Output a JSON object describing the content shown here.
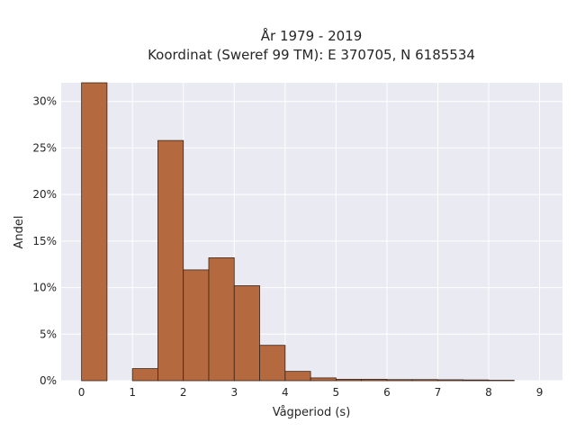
{
  "chart_data": {
    "type": "bar",
    "title_line1": "År 1979 - 2019",
    "title_line2": "Koordinat (Sweref 99 TM): E 370705, N 6185534",
    "xlabel": "Vågperiod (s)",
    "ylabel": "Andel",
    "xlim": [
      -0.4,
      9.45
    ],
    "ylim": [
      0,
      0.32
    ],
    "x_ticks": [
      0,
      1,
      2,
      3,
      4,
      5,
      6,
      7,
      8,
      9
    ],
    "x_tick_labels": [
      "0",
      "1",
      "2",
      "3",
      "4",
      "5",
      "6",
      "7",
      "8",
      "9"
    ],
    "y_ticks": [
      0,
      0.05,
      0.1,
      0.15,
      0.2,
      0.25,
      0.3
    ],
    "y_tick_labels": [
      "0%",
      "5%",
      "10%",
      "15%",
      "20%",
      "25%",
      "30%"
    ],
    "bin_width": 0.5,
    "bins": [
      {
        "start": 0.0,
        "value": 0.32
      },
      {
        "start": 0.5,
        "value": 0.0
      },
      {
        "start": 1.0,
        "value": 0.013
      },
      {
        "start": 1.5,
        "value": 0.258
      },
      {
        "start": 2.0,
        "value": 0.119
      },
      {
        "start": 2.5,
        "value": 0.132
      },
      {
        "start": 3.0,
        "value": 0.102
      },
      {
        "start": 3.5,
        "value": 0.038
      },
      {
        "start": 4.0,
        "value": 0.01
      },
      {
        "start": 4.5,
        "value": 0.003
      },
      {
        "start": 5.0,
        "value": 0.0015
      },
      {
        "start": 5.5,
        "value": 0.0015
      },
      {
        "start": 6.0,
        "value": 0.0012
      },
      {
        "start": 6.5,
        "value": 0.0012
      },
      {
        "start": 7.0,
        "value": 0.001
      },
      {
        "start": 7.5,
        "value": 0.0008
      },
      {
        "start": 8.0,
        "value": 0.0005
      }
    ],
    "grid": true,
    "bar_color": "#b5693f",
    "bar_edge_color": "#3b2418",
    "plot_background": "#eaeaf2",
    "grid_color": "#ffffff"
  }
}
